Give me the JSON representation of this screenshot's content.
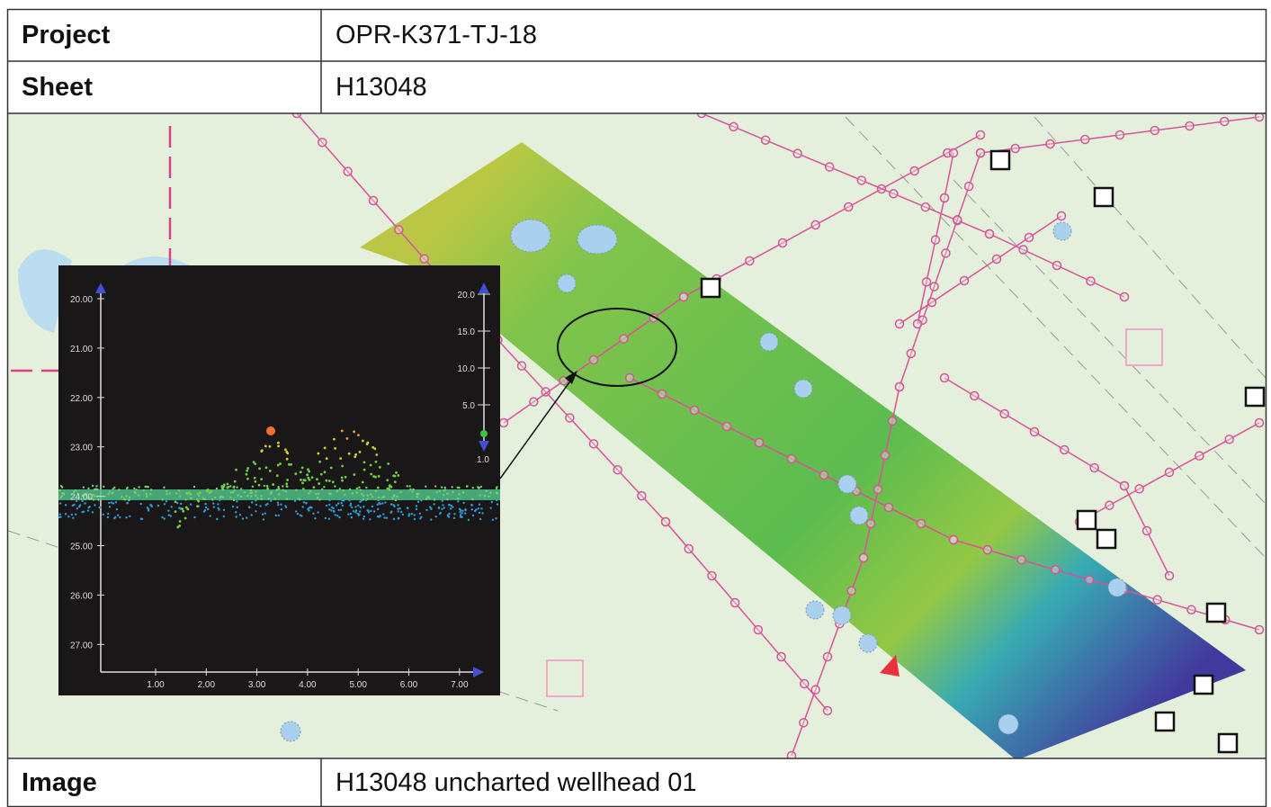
{
  "table": {
    "rows": [
      [
        "Project",
        "OPR-K371-TJ-18"
      ],
      [
        "Sheet",
        "H13048"
      ],
      [
        "Image",
        "H13048 uncharted wellhead 01"
      ]
    ]
  },
  "image": {
    "inset": {
      "y_ticks": [
        "20.00",
        "21.00",
        "22.00",
        "23.00",
        "24.00",
        "25.00",
        "26.00",
        "27.00"
      ],
      "x_ticks": [
        "1.00",
        "2.00",
        "3.00",
        "4.00",
        "5.00",
        "6.00",
        "7.00"
      ],
      "scale_ticks": [
        "20.0",
        "15.0",
        "10.0",
        "5.0",
        "1.0"
      ]
    }
  }
}
